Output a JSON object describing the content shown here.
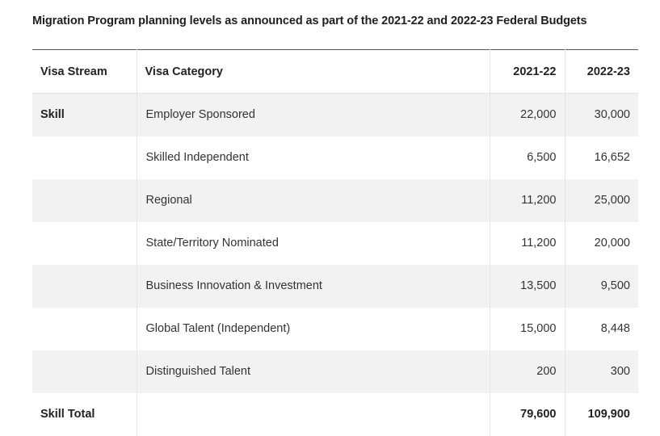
{
  "caption": "Migration Program planning levels as announced as part of the 2021-22 and 2022-23 Federal Budgets",
  "headers": {
    "stream": "Visa Stream",
    "category": "Visa Category",
    "y1": "2021-22",
    "y2": "2022-23"
  },
  "rows": [
    {
      "stream": "Skill",
      "category": "Employer Sponsored",
      "y1": "22,000",
      "y2": "30,000"
    },
    {
      "stream": "",
      "category": "Skilled Independent",
      "y1": "6,500",
      "y2": "16,652"
    },
    {
      "stream": "",
      "category": "Regional",
      "y1": "11,200",
      "y2": "25,000"
    },
    {
      "stream": "",
      "category": "State/Territory Nominated",
      "y1": "11,200",
      "y2": "20,000"
    },
    {
      "stream": "",
      "category": "Business Innovation & Investment",
      "y1": "13,500",
      "y2": "9,500"
    },
    {
      "stream": "",
      "category": "Global Talent (Independent)",
      "y1": "15,000",
      "y2": "8,448"
    },
    {
      "stream": "",
      "category": "Distinguished Talent",
      "y1": "200",
      "y2": "300"
    }
  ],
  "total": {
    "stream": "Skill Total",
    "category": "",
    "y1": "79,600",
    "y2": "109,900"
  }
}
